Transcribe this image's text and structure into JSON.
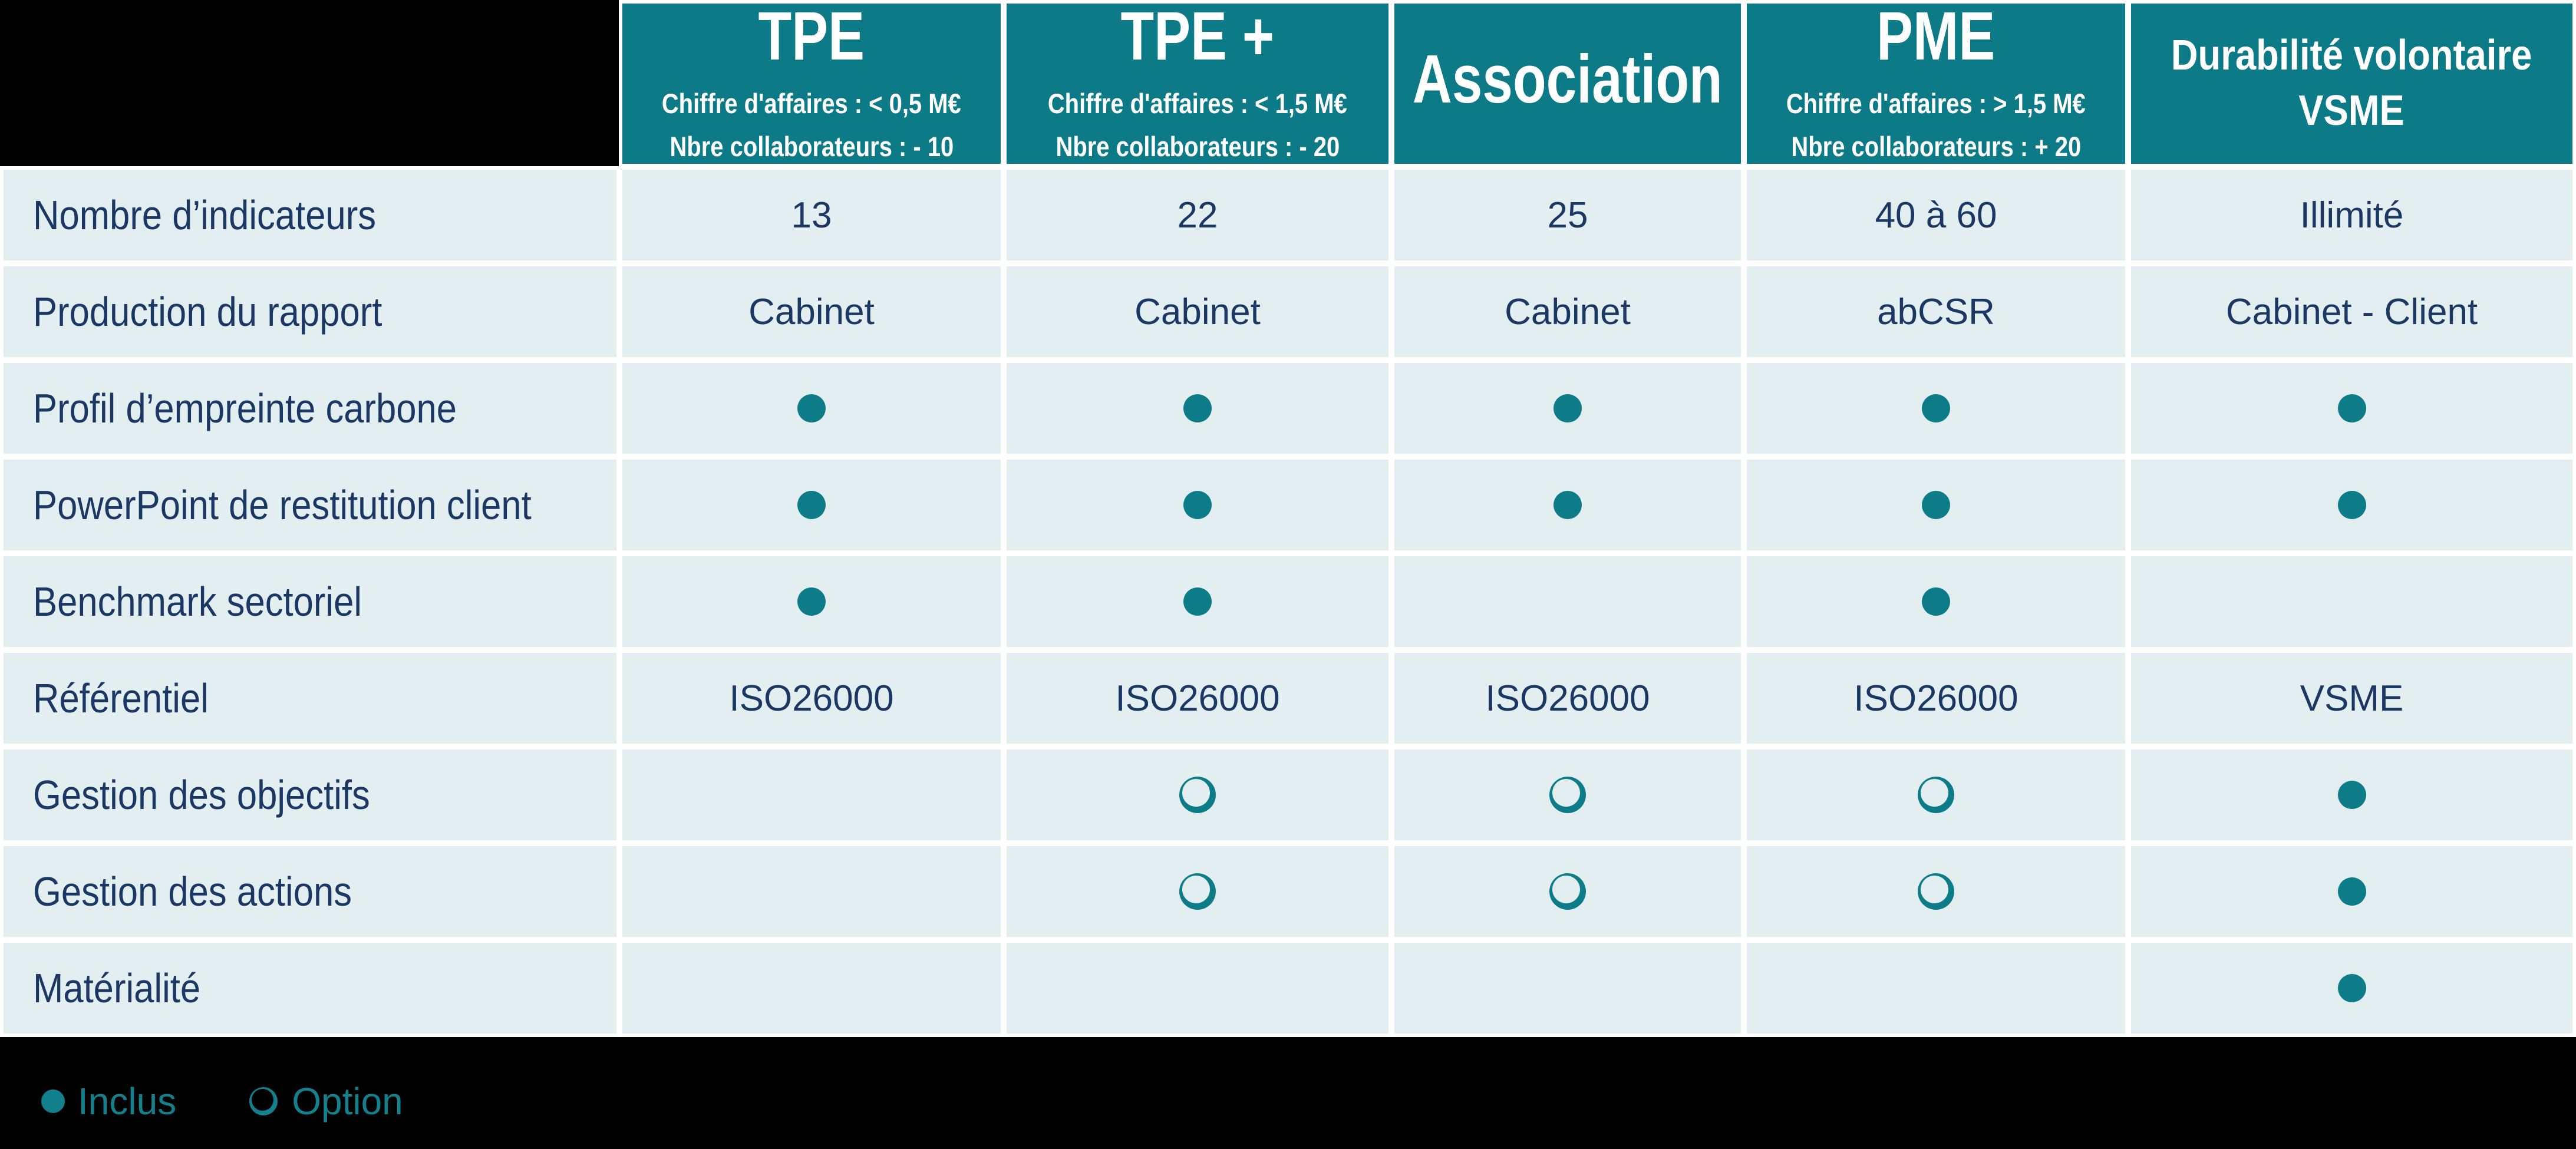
{
  "colors": {
    "teal_header": "#0d7b87",
    "teal_icon": "#0e7c88",
    "teal_legend": "#12808d",
    "navy_text": "#1b3764",
    "cell_background": "#e3eef0",
    "grid_line": "#ffffff",
    "page_background": "#000000"
  },
  "table": {
    "columns": [
      {
        "id": "tpe",
        "title": "TPE",
        "title_line2": "",
        "subtitle1": "Chiffre d'affaires : < 0,5 M€",
        "subtitle2": "Nbre collaborateurs : - 10"
      },
      {
        "id": "tpe-plus",
        "title": "TPE +",
        "title_line2": "",
        "subtitle1": "Chiffre d'affaires : < 1,5 M€",
        "subtitle2": "Nbre collaborateurs : - 20"
      },
      {
        "id": "association",
        "title": "Association",
        "title_line2": "",
        "subtitle1": "",
        "subtitle2": ""
      },
      {
        "id": "pme",
        "title": "PME",
        "title_line2": "",
        "subtitle1": "Chiffre d'affaires : > 1,5 M€",
        "subtitle2": "Nbre collaborateurs : + 20"
      },
      {
        "id": "vsme",
        "title": "Durabilité volontaire",
        "title_line2": "VSME",
        "subtitle1": "",
        "subtitle2": ""
      }
    ],
    "rows": [
      {
        "label": "Nombre d’indicateurs",
        "cells": [
          "13",
          "22",
          "25",
          "40 à 60",
          "Illimité"
        ]
      },
      {
        "label": "Production du rapport",
        "cells": [
          "Cabinet",
          "Cabinet",
          "Cabinet",
          "abCSR",
          "Cabinet - Client"
        ]
      },
      {
        "label": "Profil d’empreinte carbone",
        "cells": [
          "dot",
          "dot",
          "dot",
          "dot",
          "dot"
        ]
      },
      {
        "label": "PowerPoint de restitution client",
        "cells": [
          "dot",
          "dot",
          "dot",
          "dot",
          "dot"
        ]
      },
      {
        "label": "Benchmark sectoriel",
        "cells": [
          "dot",
          "dot",
          "",
          "dot",
          ""
        ]
      },
      {
        "label": "Référentiel",
        "cells": [
          "ISO26000",
          "ISO26000",
          "ISO26000",
          "ISO26000",
          "VSME"
        ]
      },
      {
        "label": "Gestion des objectifs",
        "cells": [
          "",
          "ring",
          "ring",
          "ring",
          "dot"
        ]
      },
      {
        "label": "Gestion des actions",
        "cells": [
          "",
          "ring",
          "ring",
          "ring",
          "dot"
        ]
      },
      {
        "label": "Matérialité",
        "cells": [
          "",
          "",
          "",
          "",
          "dot"
        ]
      }
    ]
  },
  "legend": {
    "included_label": "Inclus",
    "option_label": "Option"
  },
  "icons": {
    "dot": "filled-circle-included",
    "ring": "open-circle-option"
  }
}
